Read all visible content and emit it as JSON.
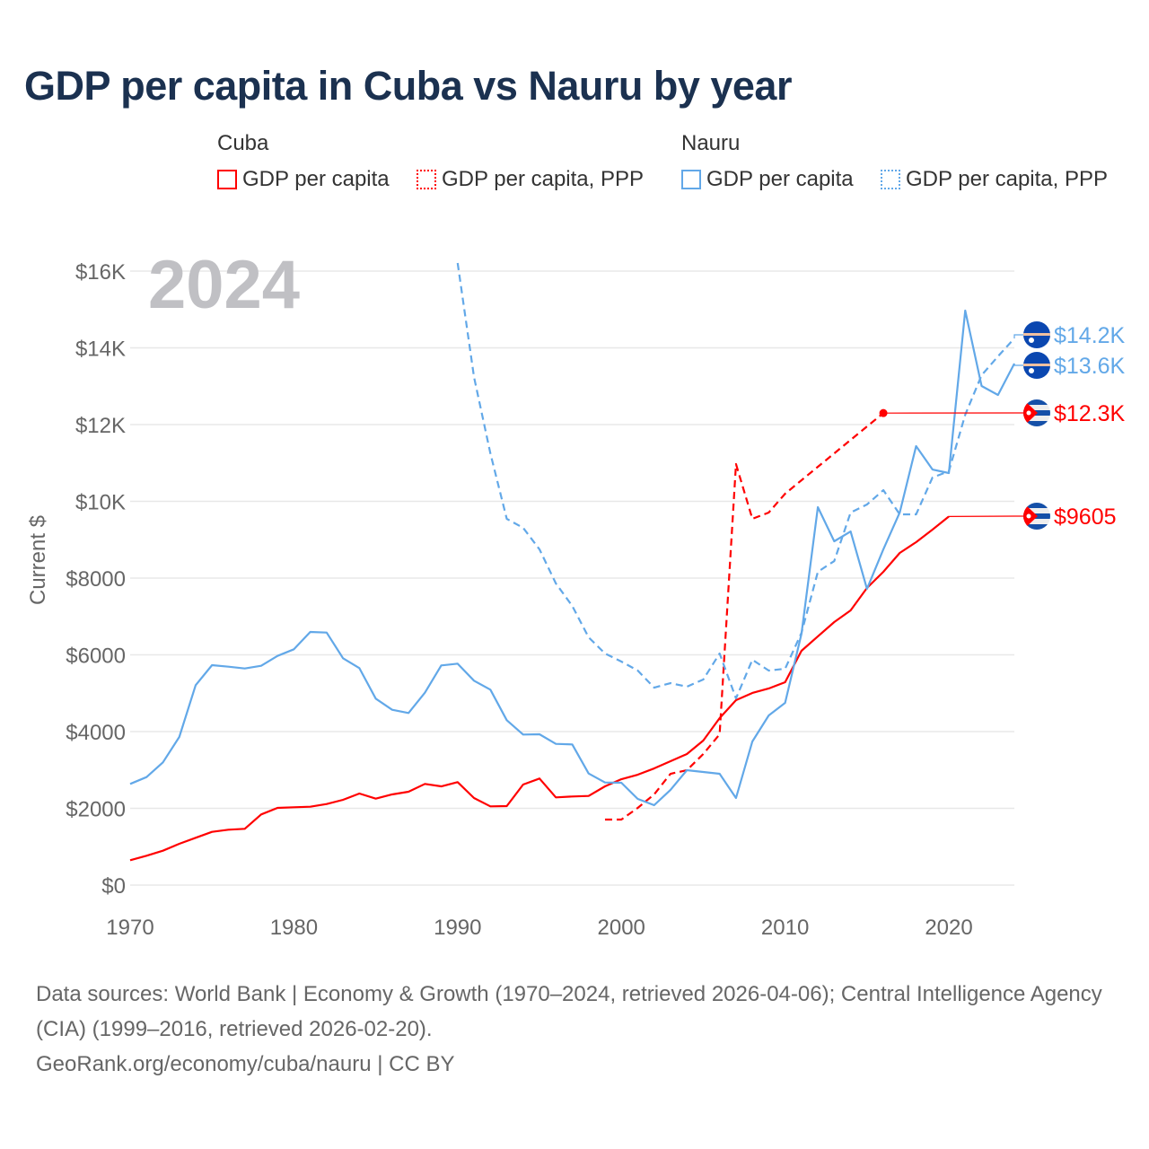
{
  "title": "GDP per capita in Cuba vs Nauru by year",
  "legend": {
    "groups": [
      {
        "name": "Cuba",
        "items": [
          "GDP per capita",
          "GDP per capita, PPP"
        ]
      },
      {
        "name": "Nauru",
        "items": [
          "GDP per capita",
          "GDP per capita, PPP"
        ]
      }
    ]
  },
  "year_watermark": "2024",
  "footer": {
    "sources": "Data sources: World Bank | Economy & Growth (1970–2024, retrieved 2026-04-06); Central Intelligence Agency (CIA) (1999–2016, retrieved 2026-02-20).",
    "link": "GeoRank.org/economy/cuba/nauru | CC BY"
  },
  "colors": {
    "cuba": "#ff0000",
    "nauru": "#62a8e8",
    "grid": "#e8e8e8",
    "axis_text": "#666666"
  },
  "chart_data": {
    "type": "line",
    "title": "GDP per capita in Cuba vs Nauru by year",
    "xlabel": "",
    "ylabel": "Current $",
    "xlim": [
      1970,
      2024
    ],
    "ylim": [
      0,
      16000
    ],
    "x_ticks": [
      1970,
      1980,
      1990,
      2000,
      2010,
      2020
    ],
    "x_tick_labels": [
      "1970",
      "1980",
      "1990",
      "2000",
      "2010",
      "2020"
    ],
    "y_ticks": [
      0,
      2000,
      4000,
      6000,
      8000,
      10000,
      12000,
      14000,
      16000
    ],
    "y_tick_labels": [
      "$0",
      "$2000",
      "$4000",
      "$6000",
      "$8000",
      "$10K",
      "$12K",
      "$14K",
      "$16K"
    ],
    "grid": true,
    "legend_position": "top",
    "series": [
      {
        "name": "Cuba GDP per capita",
        "country": "cuba",
        "dashed": false,
        "end_label": "$9605",
        "start": 1970,
        "values": [
          648,
          765,
          896,
          1076,
          1233,
          1387,
          1443,
          1467,
          1841,
          2012,
          2028,
          2042,
          2112,
          2222,
          2386,
          2253,
          2363,
          2433,
          2636,
          2573,
          2683,
          2269,
          2051,
          2058,
          2620,
          2777,
          2285,
          2309,
          2323,
          2573,
          2760,
          2877,
          3040,
          3228,
          3415,
          3766,
          4351,
          4819,
          5006,
          5123,
          5287,
          6105,
          6480,
          6854,
          7158,
          7743,
          8164,
          8655,
          8936,
          9263,
          9605
        ]
      },
      {
        "name": "Cuba GDP per capita, PPP",
        "country": "cuba",
        "dashed": true,
        "end_label": "$12.3K",
        "start": 1999,
        "values": [
          1708,
          1708,
          2012,
          2363,
          2900,
          2994,
          3415,
          3930,
          10971,
          9544,
          9708,
          10199,
          10550,
          10900,
          11250,
          11600,
          11950,
          12300
        ]
      },
      {
        "name": "Nauru GDP per capita",
        "country": "nauru",
        "dashed": false,
        "end_label": "$13.6K",
        "start": 1970,
        "values": [
          2636,
          2814,
          3197,
          3860,
          5209,
          5731,
          5691,
          5645,
          5715,
          5972,
          6145,
          6596,
          6580,
          5911,
          5653,
          4858,
          4569,
          4484,
          5013,
          5724,
          5770,
          5326,
          5092,
          4297,
          3922,
          3930,
          3680,
          3665,
          2908,
          2674,
          2667,
          2246,
          2082,
          2480,
          2994,
          2947,
          2900,
          2269,
          3743,
          4421,
          4749,
          6550,
          9848,
          8959,
          9216,
          7719,
          8749,
          9708,
          11439,
          10830,
          10737,
          14971,
          13006,
          12772,
          13591
        ]
      },
      {
        "name": "Nauru GDP per capita, PPP",
        "country": "nauru",
        "dashed": true,
        "end_label": "$14.2K",
        "start": 1990,
        "values": [
          16210,
          13240,
          11250,
          9544,
          9310,
          8749,
          7860,
          7275,
          6456,
          6035,
          5825,
          5591,
          5146,
          5263,
          5170,
          5357,
          6035,
          4865,
          5871,
          5591,
          5637,
          6573,
          8164,
          8444,
          9708,
          9918,
          10292,
          9661,
          9661,
          10620,
          10784,
          12257,
          13287,
          13778,
          14246
        ]
      }
    ]
  }
}
